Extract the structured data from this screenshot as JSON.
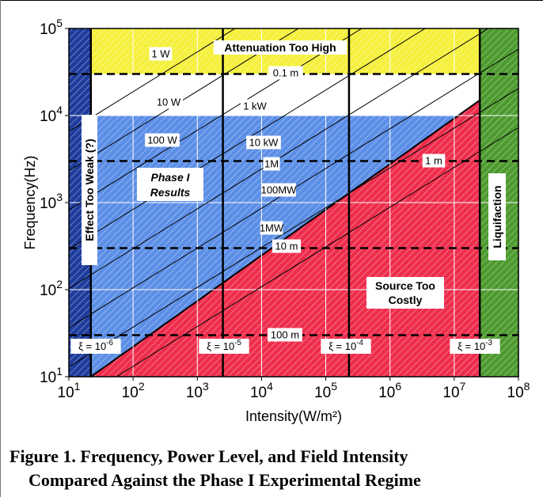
{
  "colors": {
    "attenuation": "#f5f03c",
    "phase1": "#5b8ee6",
    "costly": "#ee2d4c",
    "weak": "#1d3c9c",
    "liquifaction": "#4d9a2e"
  },
  "chart_data": {
    "type": "region-map",
    "xlabel": "Intensity(W/m²)",
    "ylabel": "Frequency(Hz)",
    "xscale": "log",
    "yscale": "log",
    "xlim": [
      10,
      100000000
    ],
    "ylim": [
      10,
      100000
    ],
    "x_tick_labels": [
      {
        "base": "10",
        "exp": "1"
      },
      {
        "base": "10",
        "exp": "2"
      },
      {
        "base": "10",
        "exp": "3"
      },
      {
        "base": "10",
        "exp": "4"
      },
      {
        "base": "10",
        "exp": "5"
      },
      {
        "base": "10",
        "exp": "6"
      },
      {
        "base": "10",
        "exp": "7"
      },
      {
        "base": "10",
        "exp": "8"
      }
    ],
    "y_tick_labels": [
      {
        "base": "10",
        "exp": "1"
      },
      {
        "base": "10",
        "exp": "2"
      },
      {
        "base": "10",
        "exp": "3"
      },
      {
        "base": "10",
        "exp": "4"
      },
      {
        "base": "10",
        "exp": "5"
      }
    ],
    "grid": true,
    "regions": [
      {
        "label": "Attenuation Too High",
        "x": [
          22,
          25000000
        ],
        "y": [
          30000,
          100000
        ]
      },
      {
        "label": [
          "Phase I",
          "Results"
        ],
        "x": [
          22,
          25000000
        ],
        "y": [
          10,
          10000
        ]
      },
      {
        "label": [
          "Source Too",
          "Costly"
        ],
        "x": [
          22,
          25000000
        ],
        "y": [
          10,
          15000
        ]
      },
      {
        "label": "Effect Too Weak (?)",
        "x": [
          10,
          22
        ],
        "y": [
          10,
          100000
        ]
      },
      {
        "label": "Liquifaction",
        "x": [
          25000000,
          100000000
        ],
        "y": [
          10,
          100000
        ]
      }
    ],
    "wavelength_lines": [
      {
        "label": "0.1 m",
        "y": 30000
      },
      {
        "label": "1 m",
        "y": 3000
      },
      {
        "label": "10 m",
        "y": 300
      },
      {
        "label": "100 m",
        "y": 30
      }
    ],
    "xi_lines": [
      {
        "base": "ξ = 10",
        "exp": "-6",
        "x": 22
      },
      {
        "base": "ξ = 10",
        "exp": "-5",
        "x": 2500
      },
      {
        "base": "ξ = 10",
        "exp": "-4",
        "x": 230000
      },
      {
        "base": "ξ = 10",
        "exp": "-3",
        "x": 25000000
      }
    ],
    "power_lines": [
      {
        "label": "1 W"
      },
      {
        "label": "10 W"
      },
      {
        "label": "100 W"
      },
      {
        "label": "1 kW"
      },
      {
        "label": "10 kW"
      },
      {
        "label": "1M"
      },
      {
        "label": "100MW"
      },
      {
        "label": "1MW"
      }
    ]
  },
  "caption": {
    "line1": "Figure 1.  Frequency, Power Level, and Field Intensity",
    "line2": "Compared Against the Phase I Experimental Regime"
  }
}
